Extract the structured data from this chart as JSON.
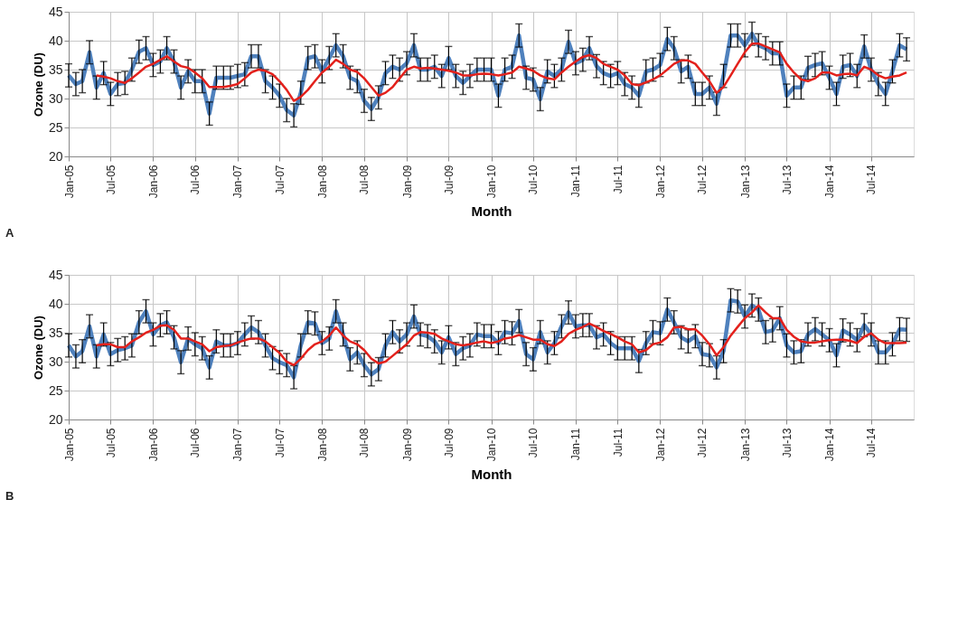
{
  "chart_data": [
    {
      "type": "line",
      "xlabel": "Month",
      "ylabel": "Ozone (DU)",
      "annotations": [
        "A"
      ],
      "x": [
        "2005-01",
        "2005-02",
        "2005-03",
        "2005-04",
        "2005-05",
        "2005-06",
        "2005-07",
        "2005-08",
        "2005-09",
        "2005-10",
        "2005-11",
        "2005-12",
        "2006-01",
        "2006-02",
        "2006-03",
        "2006-04",
        "2006-05",
        "2006-06",
        "2006-07",
        "2006-08",
        "2006-09",
        "2006-10",
        "2006-11",
        "2006-12",
        "2007-01",
        "2007-02",
        "2007-03",
        "2007-04",
        "2007-05",
        "2007-06",
        "2007-07",
        "2007-08",
        "2007-09",
        "2007-10",
        "2007-11",
        "2007-12",
        "2008-01",
        "2008-02",
        "2008-03",
        "2008-04",
        "2008-05",
        "2008-06",
        "2008-07",
        "2008-08",
        "2008-09",
        "2008-10",
        "2008-11",
        "2008-12",
        "2009-01",
        "2009-02",
        "2009-03",
        "2009-04",
        "2009-05",
        "2009-06",
        "2009-07",
        "2009-08",
        "2009-09",
        "2009-10",
        "2009-11",
        "2009-12",
        "2010-01",
        "2010-02",
        "2010-03",
        "2010-04",
        "2010-05",
        "2010-06",
        "2010-07",
        "2010-08",
        "2010-09",
        "2010-10",
        "2010-11",
        "2010-12",
        "2011-01",
        "2011-02",
        "2011-03",
        "2011-04",
        "2011-05",
        "2011-06",
        "2011-07",
        "2011-08",
        "2011-09",
        "2011-10",
        "2011-11",
        "2011-12",
        "2012-01",
        "2012-02",
        "2012-03",
        "2012-04",
        "2012-05",
        "2012-06",
        "2012-07",
        "2012-08",
        "2012-09",
        "2012-10",
        "2012-11",
        "2012-12",
        "2013-01",
        "2013-02",
        "2013-03",
        "2013-04",
        "2013-05",
        "2013-06",
        "2013-07",
        "2013-08",
        "2013-09",
        "2013-10",
        "2013-11",
        "2013-12",
        "2014-01",
        "2014-02",
        "2014-03",
        "2014-04",
        "2014-05",
        "2014-06",
        "2014-07",
        "2014-08",
        "2014-09",
        "2014-10",
        "2014-11",
        "2014-12"
      ],
      "series": [
        {
          "color": "#4f81bd",
          "values": [
            34,
            32.5,
            33,
            38,
            31.9,
            34.4,
            30.8,
            32.5,
            32.7,
            35,
            38.1,
            38.7,
            35.8,
            36.4,
            38.7,
            36.4,
            31.9,
            34.7,
            33,
            33,
            27.4,
            33.6,
            33.6,
            33.6,
            33.9,
            34.2,
            37.3,
            37.3,
            33,
            31.9,
            30.5,
            28,
            27.1,
            31,
            37,
            37.3,
            34.7,
            37,
            39.2,
            37.3,
            33.6,
            33,
            29.6,
            28.2,
            30.2,
            34.4,
            35.5,
            35,
            36.1,
            39.2,
            35,
            35,
            35.5,
            33.9,
            37,
            33.9,
            32.7,
            33.9,
            35,
            35,
            35,
            30.5,
            35,
            35.5,
            40.9,
            33.6,
            33.3,
            29.9,
            34.7,
            33.9,
            35,
            39.8,
            36.1,
            36.7,
            38.7,
            35.6,
            34.4,
            33.9,
            34.4,
            32.5,
            31.9,
            30.5,
            34.7,
            35,
            35.8,
            40.3,
            38.7,
            34.7,
            35.5,
            30.8,
            30.8,
            31.9,
            29.1,
            33.9,
            40.9,
            40.9,
            39.2,
            41.2,
            39.2,
            38.7,
            37.8,
            37.8,
            30.5,
            31.9,
            31.9,
            35.3,
            35.8,
            36.1,
            33.6,
            30.8,
            35.5,
            35.8,
            33.9,
            39,
            35,
            32.5,
            30.8,
            34.7,
            39.2,
            38.5
          ],
          "errors": [
            2,
            2,
            2,
            2,
            2,
            2,
            2,
            2,
            2,
            2,
            2,
            2,
            2,
            2,
            2,
            2,
            2,
            2,
            2,
            2,
            2,
            2,
            2,
            2,
            2,
            2,
            2,
            2,
            2,
            2,
            2,
            2,
            2,
            2,
            2,
            2,
            2,
            2,
            2,
            2,
            2,
            2,
            2,
            2,
            2,
            2,
            2,
            2,
            2,
            2,
            2,
            2,
            2,
            2,
            2,
            2,
            2,
            2,
            2,
            2,
            2,
            2,
            2,
            2,
            2,
            2,
            2,
            2,
            2,
            2,
            2,
            2,
            2,
            2,
            2,
            2,
            2,
            2,
            2,
            2,
            2,
            2,
            2,
            2,
            2,
            2,
            2,
            2,
            2,
            2,
            2,
            2,
            2,
            2,
            2,
            2,
            2,
            2,
            2,
            2,
            2,
            2,
            2,
            2,
            2,
            2,
            2,
            2,
            2,
            2,
            2,
            2,
            2,
            2,
            2,
            2,
            2,
            2,
            2,
            2
          ]
        },
        {
          "color": "#e3211c",
          "values": [
            null,
            null,
            null,
            null,
            34,
            33.8,
            33.5,
            33,
            32.7,
            33.5,
            34.5,
            35.5,
            36,
            36.7,
            37.3,
            36.4,
            35.6,
            35.3,
            34.5,
            33.5,
            32,
            32,
            32,
            32.2,
            32.5,
            33.5,
            34.5,
            35,
            34.8,
            34.2,
            33,
            31.5,
            29.6,
            30.3,
            31.5,
            33,
            34.5,
            35.5,
            36.7,
            36,
            35,
            34.6,
            33.5,
            32,
            30.5,
            31,
            32,
            33.5,
            35,
            35.5,
            35.2,
            35.3,
            35.2,
            35,
            34.8,
            34.5,
            34,
            34,
            34.2,
            34.3,
            34.2,
            34,
            34.2,
            34.5,
            35.5,
            35.2,
            34.8,
            34,
            33.5,
            33.3,
            34.5,
            35.5,
            36.4,
            37.2,
            37.5,
            37,
            36,
            35.5,
            35,
            34,
            32.5,
            32.3,
            32.8,
            33.3,
            34,
            35,
            36,
            36.6,
            36.6,
            36,
            34.5,
            33,
            31,
            32,
            34,
            36,
            38,
            39.5,
            39.5,
            39,
            38.5,
            38,
            36,
            34.5,
            33.3,
            33,
            33.5,
            34.5,
            34.5,
            34,
            34.2,
            34.3,
            34,
            35.5,
            35,
            34,
            33.5,
            33.8,
            34,
            34.5
          ]
        }
      ],
      "xlim": [
        "2005-01",
        "2015-01"
      ],
      "xticks": [
        {
          "value": "2005-01",
          "label": "Jan-05"
        },
        {
          "value": "2005-07",
          "label": "Jul-05"
        },
        {
          "value": "2006-01",
          "label": "Jan-06"
        },
        {
          "value": "2006-07",
          "label": "Jul-06"
        },
        {
          "value": "2007-01",
          "label": "Jan-07"
        },
        {
          "value": "2007-07",
          "label": "Jul-07"
        },
        {
          "value": "2008-01",
          "label": "Jan-08"
        },
        {
          "value": "2008-07",
          "label": "Jul-08"
        },
        {
          "value": "2009-01",
          "label": "Jan-09"
        },
        {
          "value": "2009-07",
          "label": "Jul-09"
        },
        {
          "value": "2010-01",
          "label": "Jan-10"
        },
        {
          "value": "2010-07",
          "label": "Jul-10"
        },
        {
          "value": "2011-01",
          "label": "Jan-11"
        },
        {
          "value": "2011-07",
          "label": "Jul-11"
        },
        {
          "value": "2012-01",
          "label": "Jan-12"
        },
        {
          "value": "2012-07",
          "label": "Jul-12"
        },
        {
          "value": "2013-01",
          "label": "Jan-13"
        },
        {
          "value": "2013-07",
          "label": "Jul-13"
        },
        {
          "value": "2014-01",
          "label": "Jan-14"
        },
        {
          "value": "2014-07",
          "label": "Jul-14"
        }
      ],
      "ylim": [
        20,
        45
      ],
      "yticks": [
        20,
        25,
        30,
        35,
        40,
        45
      ],
      "grid": true
    },
    {
      "type": "line",
      "xlabel": "Month",
      "ylabel": "Ozone (DU)",
      "annotations": [
        "B"
      ],
      "x": [
        "2005-01",
        "2005-02",
        "2005-03",
        "2005-04",
        "2005-05",
        "2005-06",
        "2005-07",
        "2005-08",
        "2005-09",
        "2005-10",
        "2005-11",
        "2005-12",
        "2006-01",
        "2006-02",
        "2006-03",
        "2006-04",
        "2006-05",
        "2006-06",
        "2006-07",
        "2006-08",
        "2006-09",
        "2006-10",
        "2006-11",
        "2006-12",
        "2007-01",
        "2007-02",
        "2007-03",
        "2007-04",
        "2007-05",
        "2007-06",
        "2007-07",
        "2007-08",
        "2007-09",
        "2007-10",
        "2007-11",
        "2007-12",
        "2008-01",
        "2008-02",
        "2008-03",
        "2008-04",
        "2008-05",
        "2008-06",
        "2008-07",
        "2008-08",
        "2008-09",
        "2008-10",
        "2008-11",
        "2008-12",
        "2009-01",
        "2009-02",
        "2009-03",
        "2009-04",
        "2009-05",
        "2009-06",
        "2009-07",
        "2009-08",
        "2009-09",
        "2009-10",
        "2009-11",
        "2009-12",
        "2010-01",
        "2010-02",
        "2010-03",
        "2010-04",
        "2010-05",
        "2010-06",
        "2010-07",
        "2010-08",
        "2010-09",
        "2010-10",
        "2010-11",
        "2010-12",
        "2011-01",
        "2011-02",
        "2011-03",
        "2011-04",
        "2011-05",
        "2011-06",
        "2011-07",
        "2011-08",
        "2011-09",
        "2011-10",
        "2011-11",
        "2011-12",
        "2012-01",
        "2012-02",
        "2012-03",
        "2012-04",
        "2012-05",
        "2012-06",
        "2012-07",
        "2012-08",
        "2012-09",
        "2012-10",
        "2012-11",
        "2012-12",
        "2013-01",
        "2013-02",
        "2013-03",
        "2013-04",
        "2013-05",
        "2013-06",
        "2013-07",
        "2013-08",
        "2013-09",
        "2013-10",
        "2013-11",
        "2013-12",
        "2014-01",
        "2014-02",
        "2014-03",
        "2014-04",
        "2014-05",
        "2014-06",
        "2014-07",
        "2014-08",
        "2014-09",
        "2014-10",
        "2014-11",
        "2014-12"
      ],
      "series": [
        {
          "color": "#4f81bd",
          "values": [
            32.8,
            30.9,
            31.8,
            36.1,
            30.9,
            34.7,
            31.3,
            32,
            32.3,
            32.8,
            36.8,
            38.7,
            34.7,
            36.3,
            36.8,
            34.2,
            29.9,
            34,
            33,
            32.3,
            29,
            33.5,
            32.8,
            32.8,
            33.2,
            34.7,
            35.9,
            35.1,
            32.8,
            30.6,
            29.9,
            29.4,
            27.3,
            32.8,
            36.8,
            36.6,
            33.2,
            34,
            38.7,
            34.7,
            30.4,
            31.6,
            29.4,
            27.8,
            28.7,
            32.8,
            35.1,
            33.5,
            34.7,
            37.8,
            34.7,
            34.4,
            33.5,
            31.6,
            34.2,
            31.3,
            32.3,
            32.8,
            34.7,
            34.4,
            34.4,
            33.2,
            35.1,
            34.9,
            37,
            31.3,
            30.4,
            35.1,
            31.6,
            33.2,
            36.1,
            38.5,
            36.1,
            36.3,
            36.3,
            34.2,
            34.7,
            33.2,
            32.3,
            32.3,
            32.3,
            30.1,
            33.2,
            35.1,
            34.9,
            39,
            36.8,
            34.2,
            33.5,
            34.4,
            31.3,
            31.1,
            29,
            31.8,
            40.6,
            40.4,
            37.8,
            39.7,
            39,
            35.1,
            35.4,
            37.5,
            32.8,
            31.6,
            31.8,
            34.7,
            35.6,
            34.7,
            33.7,
            31.1,
            35.4,
            34.7,
            33.7,
            36.3,
            34.7,
            31.6,
            31.6,
            33,
            35.6,
            35.5
          ],
          "errors": [
            2,
            2,
            2,
            2,
            2,
            2,
            2,
            2,
            2,
            2,
            2,
            2,
            2,
            2,
            2,
            2,
            2,
            2,
            2,
            2,
            2,
            2,
            2,
            2,
            2,
            2,
            2,
            2,
            2,
            2,
            2,
            2,
            2,
            2,
            2,
            2,
            2,
            2,
            2,
            2,
            2,
            2,
            2,
            2,
            2,
            2,
            2,
            2,
            2,
            2,
            2,
            2,
            2,
            2,
            2,
            2,
            2,
            2,
            2,
            2,
            2,
            2,
            2,
            2,
            2,
            2,
            2,
            2,
            2,
            2,
            2,
            2,
            2,
            2,
            2,
            2,
            2,
            2,
            2,
            2,
            2,
            2,
            2,
            2,
            2,
            2,
            2,
            2,
            2,
            2,
            2,
            2,
            2,
            2,
            2,
            2,
            2,
            2,
            2,
            2,
            2,
            2,
            2,
            2,
            2,
            2,
            2,
            2,
            2,
            2,
            2,
            2,
            2,
            2,
            2,
            2,
            2,
            2,
            2,
            2
          ]
        },
        {
          "color": "#e3211c",
          "values": [
            null,
            null,
            null,
            null,
            32.8,
            33,
            33,
            32.5,
            32.5,
            33.5,
            34.2,
            35,
            35.5,
            36.2,
            36.3,
            35.5,
            34,
            34,
            33.5,
            33,
            31.8,
            32.5,
            32.7,
            32.8,
            33.3,
            33.7,
            34,
            34,
            33.5,
            32.5,
            31.5,
            30,
            29.4,
            30.5,
            32,
            33,
            33.5,
            34.5,
            35.9,
            34.5,
            33.5,
            33,
            32,
            30.5,
            29.7,
            30,
            31,
            32,
            33,
            34.5,
            35.1,
            35,
            34.8,
            34,
            33.5,
            33,
            32.8,
            33,
            33.3,
            33.5,
            33.2,
            33.5,
            34,
            34.2,
            34.6,
            34.2,
            33.8,
            33.8,
            33,
            32.7,
            33.5,
            34.8,
            35.5,
            36,
            36.6,
            36,
            35.3,
            34.8,
            34.2,
            33.5,
            33,
            31.6,
            32,
            33,
            33.3,
            34.2,
            35.9,
            36,
            35.6,
            35.6,
            34.5,
            33,
            31.1,
            32.5,
            34.5,
            36,
            37.5,
            38.5,
            39.7,
            38.5,
            37.5,
            37.5,
            35.5,
            34.3,
            33.5,
            33.3,
            33.3,
            33.5,
            33.7,
            33.8,
            33.8,
            33.6,
            33.2,
            34.3,
            34.9,
            33.8,
            33.2,
            33.2,
            33.2,
            33.3
          ]
        }
      ],
      "xlim": [
        "2005-01",
        "2015-01"
      ],
      "xticks": [
        {
          "value": "2005-01",
          "label": "Jan-05"
        },
        {
          "value": "2005-07",
          "label": "Jul-05"
        },
        {
          "value": "2006-01",
          "label": "Jan-06"
        },
        {
          "value": "2006-07",
          "label": "Jul-06"
        },
        {
          "value": "2007-01",
          "label": "Jan-07"
        },
        {
          "value": "2007-07",
          "label": "Jul-07"
        },
        {
          "value": "2008-01",
          "label": "Jan-08"
        },
        {
          "value": "2008-07",
          "label": "Jul-08"
        },
        {
          "value": "2009-01",
          "label": "Jan-09"
        },
        {
          "value": "2009-07",
          "label": "Jul-09"
        },
        {
          "value": "2010-01",
          "label": "Jan-10"
        },
        {
          "value": "2010-07",
          "label": "Jul-10"
        },
        {
          "value": "2011-01",
          "label": "Jan-11"
        },
        {
          "value": "2011-07",
          "label": "Jul-11"
        },
        {
          "value": "2012-01",
          "label": "Jan-12"
        },
        {
          "value": "2012-07",
          "label": "Jul-12"
        },
        {
          "value": "2013-01",
          "label": "Jan-13"
        },
        {
          "value": "2013-07",
          "label": "Jul-13"
        },
        {
          "value": "2014-01",
          "label": "Jan-14"
        },
        {
          "value": "2014-07",
          "label": "Jul-14"
        }
      ],
      "ylim": [
        20,
        45
      ],
      "yticks": [
        20,
        25,
        30,
        35,
        40,
        45
      ],
      "grid": true
    }
  ]
}
